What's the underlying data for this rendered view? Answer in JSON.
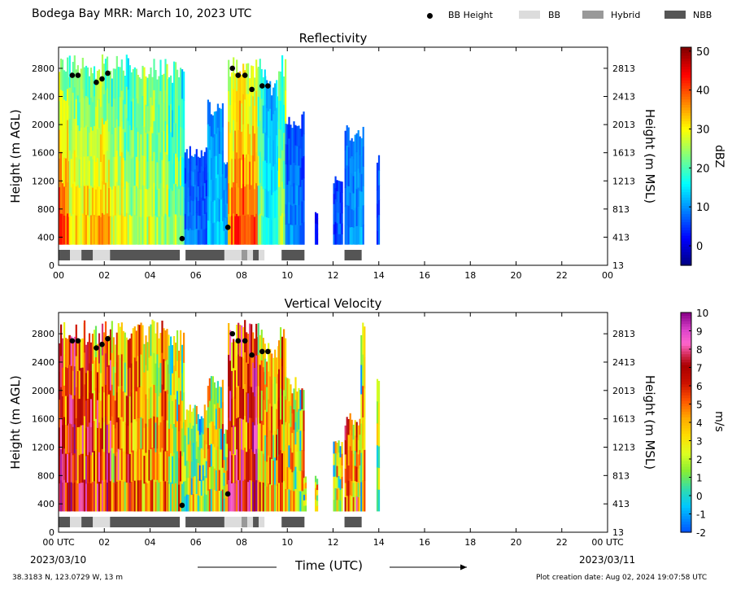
{
  "header": {
    "title": "Bodega Bay MRR:  March 10, 2023 UTC",
    "legend": [
      {
        "label": "BB Height",
        "kind": "dot",
        "color": "#000000"
      },
      {
        "label": "BB",
        "kind": "box",
        "color": "#dcdcdc"
      },
      {
        "label": "Hybrid",
        "kind": "box",
        "color": "#999999"
      },
      {
        "label": "NBB",
        "kind": "box",
        "color": "#555555"
      }
    ]
  },
  "footer": {
    "location": "38.3183 N, 123.0729 W, 13 m",
    "created": "Plot creation date: Aug 02, 2024 19:07:58 UTC",
    "xlabel": "Time (UTC)",
    "start_date": "2023/03/10",
    "end_date": "2023/03/11"
  },
  "chart_data": [
    {
      "type": "heatmap",
      "title": "Reflectivity",
      "ylabel": "Height (m AGL)",
      "y2label": "Height (m MSL)",
      "colorbar_label": "dBZ",
      "x_ticks": [
        "00",
        "02",
        "04",
        "06",
        "08",
        "10",
        "12",
        "14",
        "16",
        "18",
        "20",
        "22",
        "00"
      ],
      "xlim": [
        0,
        24
      ],
      "y_ticks": [
        0,
        400,
        800,
        1200,
        1600,
        2000,
        2400,
        2800
      ],
      "ylim": [
        0,
        3100
      ],
      "y2_ticks": [
        "13",
        "413",
        "813",
        "1213",
        "1613",
        "2013",
        "2413",
        "2813"
      ],
      "colorbar_ticks": [
        0,
        10,
        20,
        30,
        40,
        50
      ],
      "colorbar_range": [
        -5,
        51
      ],
      "bb_height": {
        "x": [
          0.6,
          0.85,
          1.65,
          1.9,
          2.15,
          5.4,
          7.4,
          7.6,
          7.85,
          8.15,
          8.45,
          8.9,
          9.15
        ],
        "y": [
          2700,
          2700,
          2600,
          2650,
          2730,
          380,
          540,
          2800,
          2700,
          2700,
          2500,
          2550,
          2550
        ]
      },
      "bb_type_segments": [
        {
          "start": 0.0,
          "end": 0.5,
          "type": "NBB"
        },
        {
          "start": 0.5,
          "end": 1.0,
          "type": "BB"
        },
        {
          "start": 1.0,
          "end": 1.5,
          "type": "NBB"
        },
        {
          "start": 1.5,
          "end": 2.25,
          "type": "BB"
        },
        {
          "start": 2.25,
          "end": 5.3,
          "type": "NBB"
        },
        {
          "start": 5.55,
          "end": 7.25,
          "type": "NBB"
        },
        {
          "start": 7.25,
          "end": 8.0,
          "type": "BB"
        },
        {
          "start": 8.0,
          "end": 8.25,
          "type": "Hybrid"
        },
        {
          "start": 8.25,
          "end": 8.5,
          "type": "BB"
        },
        {
          "start": 8.5,
          "end": 8.75,
          "type": "NBB"
        },
        {
          "start": 8.75,
          "end": 9.0,
          "type": "BB"
        },
        {
          "start": 9.75,
          "end": 10.75,
          "type": "NBB"
        },
        {
          "start": 12.5,
          "end": 13.25,
          "type": "NBB"
        }
      ],
      "precip_columns": [
        {
          "start": 0.0,
          "end": 0.45,
          "top": 3000,
          "mean": 25,
          "bottom_mean": 40
        },
        {
          "start": 0.45,
          "end": 1.1,
          "top": 3000,
          "mean": 22,
          "bottom_mean": 32
        },
        {
          "start": 1.1,
          "end": 2.3,
          "top": 3000,
          "mean": 22,
          "bottom_mean": 34
        },
        {
          "start": 2.3,
          "end": 3.5,
          "top": 3000,
          "mean": 20,
          "bottom_mean": 28
        },
        {
          "start": 3.5,
          "end": 4.8,
          "top": 3000,
          "mean": 22,
          "bottom_mean": 26
        },
        {
          "start": 4.8,
          "end": 5.5,
          "top": 2900,
          "mean": 18,
          "bottom_mean": 22
        },
        {
          "start": 5.5,
          "end": 6.5,
          "top": 1700,
          "mean": 6,
          "bottom_mean": 8
        },
        {
          "start": 6.5,
          "end": 7.2,
          "top": 2400,
          "mean": 10,
          "bottom_mean": 14
        },
        {
          "start": 7.2,
          "end": 7.4,
          "top": 1500,
          "mean": 8,
          "bottom_mean": 10
        },
        {
          "start": 7.4,
          "end": 8.7,
          "top": 3000,
          "mean": 28,
          "bottom_mean": 40
        },
        {
          "start": 8.7,
          "end": 9.0,
          "top": 3000,
          "mean": 18,
          "bottom_mean": 22
        },
        {
          "start": 9.0,
          "end": 9.6,
          "top": 2700,
          "mean": 12,
          "bottom_mean": 16
        },
        {
          "start": 9.6,
          "end": 9.9,
          "top": 3000,
          "mean": 22,
          "bottom_mean": 26
        },
        {
          "start": 9.9,
          "end": 10.7,
          "top": 2200,
          "mean": 6,
          "bottom_mean": 10
        },
        {
          "start": 11.2,
          "end": 11.3,
          "top": 800,
          "mean": 2,
          "bottom_mean": 4
        },
        {
          "start": 12.0,
          "end": 12.4,
          "top": 1300,
          "mean": 4,
          "bottom_mean": 6
        },
        {
          "start": 12.5,
          "end": 13.3,
          "top": 2000,
          "mean": 8,
          "bottom_mean": 10
        },
        {
          "start": 13.9,
          "end": 14.0,
          "top": 1600,
          "mean": 6,
          "bottom_mean": 6
        }
      ]
    },
    {
      "type": "heatmap",
      "title": "Vertical Velocity",
      "ylabel": "Height (m AGL)",
      "y2label": "Height (m MSL)",
      "colorbar_label": "m/s",
      "x_ticks": [
        "00 UTC",
        "02",
        "04",
        "06",
        "08",
        "10",
        "12",
        "14",
        "16",
        "18",
        "20",
        "22",
        "00 UTC"
      ],
      "xlim": [
        0,
        24
      ],
      "y_ticks": [
        0,
        400,
        800,
        1200,
        1600,
        2000,
        2400,
        2800
      ],
      "ylim": [
        0,
        3100
      ],
      "y2_ticks": [
        "13",
        "413",
        "813",
        "1213",
        "1613",
        "2013",
        "2413",
        "2813"
      ],
      "colorbar_ticks": [
        -2,
        -1,
        0,
        1,
        2,
        3,
        4,
        5,
        6,
        7,
        8,
        9,
        10
      ],
      "colorbar_range": [
        -2,
        10
      ],
      "bb_height": {
        "x": [
          0.6,
          0.85,
          1.65,
          1.9,
          2.15,
          5.4,
          7.4,
          7.6,
          7.85,
          8.15,
          8.45,
          8.9,
          9.15
        ],
        "y": [
          2700,
          2700,
          2600,
          2650,
          2730,
          380,
          540,
          2800,
          2700,
          2700,
          2500,
          2550,
          2550
        ]
      },
      "bb_type_segments": [
        {
          "start": 0.0,
          "end": 0.5,
          "type": "NBB"
        },
        {
          "start": 0.5,
          "end": 1.0,
          "type": "BB"
        },
        {
          "start": 1.0,
          "end": 1.5,
          "type": "NBB"
        },
        {
          "start": 1.5,
          "end": 2.25,
          "type": "BB"
        },
        {
          "start": 2.25,
          "end": 5.3,
          "type": "NBB"
        },
        {
          "start": 5.55,
          "end": 7.25,
          "type": "NBB"
        },
        {
          "start": 7.25,
          "end": 8.0,
          "type": "BB"
        },
        {
          "start": 8.0,
          "end": 8.25,
          "type": "Hybrid"
        },
        {
          "start": 8.25,
          "end": 8.5,
          "type": "BB"
        },
        {
          "start": 8.5,
          "end": 8.75,
          "type": "NBB"
        },
        {
          "start": 8.75,
          "end": 9.0,
          "type": "BB"
        },
        {
          "start": 9.75,
          "end": 10.75,
          "type": "NBB"
        },
        {
          "start": 12.5,
          "end": 13.25,
          "type": "NBB"
        }
      ],
      "precip_columns": [
        {
          "start": 0.0,
          "end": 0.45,
          "top": 3000,
          "mean": 5.5,
          "bottom_mean": 7.0
        },
        {
          "start": 0.45,
          "end": 1.1,
          "top": 3000,
          "mean": 5.5,
          "bottom_mean": 7.5
        },
        {
          "start": 1.1,
          "end": 2.3,
          "top": 3000,
          "mean": 4.5,
          "bottom_mean": 6.5
        },
        {
          "start": 2.3,
          "end": 3.5,
          "top": 3000,
          "mean": 4.0,
          "bottom_mean": 5.0
        },
        {
          "start": 3.5,
          "end": 4.8,
          "top": 3000,
          "mean": 3.5,
          "bottom_mean": 4.5
        },
        {
          "start": 4.8,
          "end": 5.5,
          "top": 2900,
          "mean": 2.5,
          "bottom_mean": 3.0
        },
        {
          "start": 5.5,
          "end": 6.5,
          "top": 1800,
          "mean": 1.5,
          "bottom_mean": 2.0
        },
        {
          "start": 6.5,
          "end": 7.2,
          "top": 2300,
          "mean": 2.0,
          "bottom_mean": 2.5
        },
        {
          "start": 7.2,
          "end": 7.4,
          "top": 1500,
          "mean": 2.0,
          "bottom_mean": 2.0
        },
        {
          "start": 7.4,
          "end": 8.7,
          "top": 3000,
          "mean": 5.5,
          "bottom_mean": 7.0
        },
        {
          "start": 8.7,
          "end": 9.0,
          "top": 3000,
          "mean": 3.5,
          "bottom_mean": 4.0
        },
        {
          "start": 9.0,
          "end": 9.6,
          "top": 2700,
          "mean": 3.0,
          "bottom_mean": 3.0
        },
        {
          "start": 9.6,
          "end": 9.9,
          "top": 3000,
          "mean": 5.0,
          "bottom_mean": 5.0
        },
        {
          "start": 9.9,
          "end": 10.7,
          "top": 2200,
          "mean": 2.5,
          "bottom_mean": 2.5
        },
        {
          "start": 10.7,
          "end": 10.8,
          "top": 800,
          "mean": 2.0,
          "bottom_mean": 2.0
        },
        {
          "start": 11.2,
          "end": 11.3,
          "top": 800,
          "mean": 2.0,
          "bottom_mean": 2.0
        },
        {
          "start": 12.0,
          "end": 12.4,
          "top": 1300,
          "mean": 2.0,
          "bottom_mean": 2.0
        },
        {
          "start": 12.5,
          "end": 13.3,
          "top": 1700,
          "mean": 5.0,
          "bottom_mean": 5.0
        },
        {
          "start": 13.2,
          "end": 13.35,
          "top": 3000,
          "mean": 2.0,
          "bottom_mean": 2.0
        },
        {
          "start": 13.9,
          "end": 14.0,
          "top": 2200,
          "mean": 2.0,
          "bottom_mean": 2.0
        }
      ]
    }
  ]
}
